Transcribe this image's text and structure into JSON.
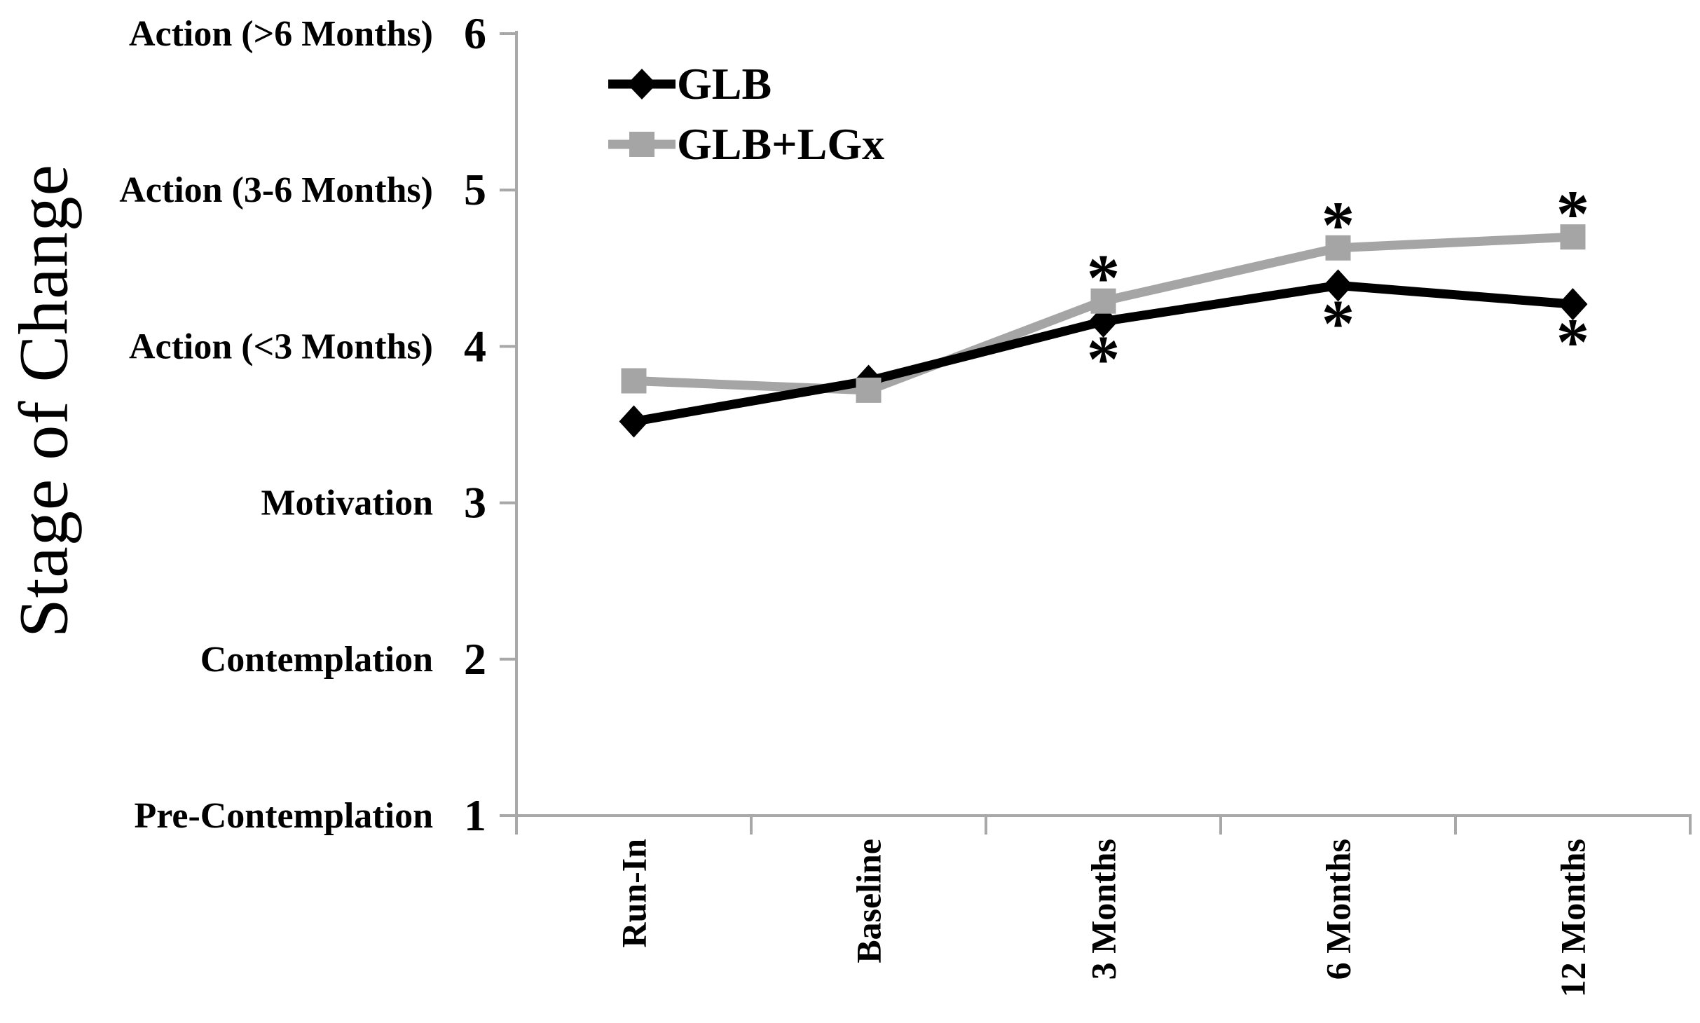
{
  "chart_data": {
    "type": "line",
    "title": "",
    "xlabel": "",
    "ylabel": "Stage of Change",
    "categories": [
      "Run-In",
      "Baseline",
      "3 Months",
      "6 Months",
      "12 Months"
    ],
    "y_axis": {
      "min": 1,
      "max": 6,
      "ticks": [
        1,
        2,
        3,
        4,
        5,
        6
      ],
      "stage_labels": [
        {
          "value": 6,
          "label": "Action (>6 Months)"
        },
        {
          "value": 5,
          "label": "Action (3-6 Months)"
        },
        {
          "value": 4,
          "label": "Action (<3 Months)"
        },
        {
          "value": 3,
          "label": "Motivation"
        },
        {
          "value": 2,
          "label": "Contemplation"
        },
        {
          "value": 1,
          "label": "Pre-Contemplation"
        }
      ]
    },
    "series": [
      {
        "name": "GLB",
        "color": "#000000",
        "marker": "diamond",
        "values": [
          3.52,
          3.78,
          4.16,
          4.39,
          4.27
        ]
      },
      {
        "name": "GLB+LGx",
        "color": "#a5a5a5",
        "marker": "square",
        "values": [
          3.78,
          3.72,
          4.29,
          4.63,
          4.7
        ]
      }
    ],
    "significance_markers": [
      {
        "series": "GLB",
        "symbol": "*",
        "position": "below",
        "categories": [
          "3 Months",
          "6 Months",
          "12 Months"
        ]
      },
      {
        "series": "GLB+LGx",
        "symbol": "*",
        "position": "above",
        "categories": [
          "3 Months",
          "6 Months",
          "12 Months"
        ]
      }
    ],
    "legend": {
      "position": "top-left-inside"
    },
    "grid": "off",
    "axis_color": "#a8a8a8",
    "background_color": "#ffffff"
  }
}
